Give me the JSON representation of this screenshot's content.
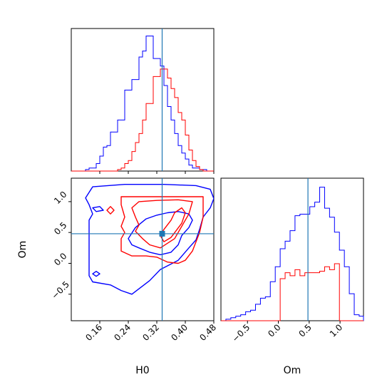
{
  "colors": {
    "blue": "#0000ff",
    "red": "#ff0000",
    "truth": "#1f77b4",
    "axis": "#000000"
  },
  "chart_data": [
    {
      "type": "histogram",
      "panel": "H0 marginal",
      "xlim": [
        0.08,
        0.48
      ],
      "truth": 0.335,
      "bin_edges": [
        0.08,
        0.09,
        0.1,
        0.11,
        0.12,
        0.13,
        0.14,
        0.15,
        0.16,
        0.17,
        0.18,
        0.19,
        0.2,
        0.21,
        0.22,
        0.23,
        0.24,
        0.25,
        0.26,
        0.27,
        0.28,
        0.29,
        0.3,
        0.31,
        0.32,
        0.33,
        0.34,
        0.35,
        0.36,
        0.37,
        0.38,
        0.39,
        0.4,
        0.41,
        0.42,
        0.43,
        0.44,
        0.45,
        0.46,
        0.47,
        0.48
      ],
      "series": [
        {
          "color": "blue",
          "values": [
            0,
            0,
            0,
            0,
            0.01,
            0.02,
            0.02,
            0.05,
            0.1,
            0.16,
            0.17,
            0.26,
            0.26,
            0.34,
            0.34,
            0.54,
            0.54,
            0.61,
            0.61,
            0.76,
            0.8,
            0.9,
            0.9,
            0.75,
            0.75,
            0.7,
            0.57,
            0.43,
            0.34,
            0.25,
            0.17,
            0.12,
            0.08,
            0.04,
            0.02,
            0.02,
            0.01,
            0.01,
            0,
            0
          ]
        },
        {
          "color": "red",
          "values": [
            0,
            0,
            0,
            0,
            0,
            0,
            0,
            0,
            0,
            0,
            0,
            0,
            0,
            0.01,
            0.02,
            0.05,
            0.07,
            0.13,
            0.19,
            0.25,
            0.34,
            0.45,
            0.45,
            0.63,
            0.63,
            0.68,
            0.68,
            0.62,
            0.55,
            0.49,
            0.39,
            0.34,
            0.24,
            0.14,
            0.07,
            0.03,
            0.01,
            0,
            0,
            0
          ]
        }
      ]
    },
    {
      "type": "contour",
      "panel": "H0 vs Om",
      "xlabel": "H0",
      "ylabel": "Om",
      "xlim": [
        0.08,
        0.48
      ],
      "ylim": [
        -0.93,
        1.38
      ],
      "xticks": [
        "0.16",
        "0.24",
        "0.32",
        "0.40",
        "0.48"
      ],
      "yticks": [
        "1.0",
        "0.5",
        "0.0",
        "−0.5"
      ],
      "xtick_values": [
        0.16,
        0.24,
        0.32,
        0.4,
        0.48
      ],
      "ytick_values": [
        1.0,
        0.5,
        0.0,
        -0.5
      ],
      "truth": [
        0.335,
        0.48
      ],
      "contours": [
        {
          "color": "blue",
          "points": [
            [
              0.12,
              1.06
            ],
            [
              0.14,
              1.24
            ],
            [
              0.23,
              1.28
            ],
            [
              0.34,
              1.28
            ],
            [
              0.43,
              1.26
            ],
            [
              0.47,
              1.2
            ],
            [
              0.48,
              1.05
            ],
            [
              0.47,
              0.9
            ],
            [
              0.45,
              0.75
            ],
            [
              0.44,
              0.55
            ],
            [
              0.43,
              0.38
            ],
            [
              0.41,
              0.25
            ],
            [
              0.38,
              0.05
            ],
            [
              0.33,
              -0.1
            ],
            [
              0.3,
              -0.28
            ],
            [
              0.25,
              -0.5
            ],
            [
              0.22,
              -0.44
            ],
            [
              0.19,
              -0.35
            ],
            [
              0.14,
              -0.3
            ],
            [
              0.13,
              -0.2
            ],
            [
              0.13,
              0.0
            ],
            [
              0.13,
              0.35
            ],
            [
              0.13,
              0.55
            ],
            [
              0.13,
              0.7
            ],
            [
              0.14,
              0.8
            ],
            [
              0.13,
              0.95
            ],
            [
              0.12,
              1.06
            ]
          ]
        },
        {
          "color": "blue",
          "points": [
            [
              0.24,
              0.4
            ],
            [
              0.26,
              0.58
            ],
            [
              0.29,
              0.72
            ],
            [
              0.32,
              0.78
            ],
            [
              0.35,
              0.82
            ],
            [
              0.38,
              0.84
            ],
            [
              0.41,
              0.8
            ],
            [
              0.42,
              0.7
            ],
            [
              0.41,
              0.58
            ],
            [
              0.39,
              0.45
            ],
            [
              0.38,
              0.3
            ],
            [
              0.36,
              0.18
            ],
            [
              0.33,
              0.14
            ],
            [
              0.3,
              0.18
            ],
            [
              0.27,
              0.25
            ],
            [
              0.25,
              0.3
            ],
            [
              0.24,
              0.4
            ]
          ]
        },
        {
          "color": "blue",
          "points": [
            [
              0.14,
              0.9
            ],
            [
              0.16,
              0.92
            ],
            [
              0.17,
              0.86
            ],
            [
              0.15,
              0.84
            ],
            [
              0.14,
              0.9
            ]
          ]
        },
        {
          "color": "blue",
          "points": [
            [
              0.14,
              -0.17
            ],
            [
              0.15,
              -0.13
            ],
            [
              0.16,
              -0.17
            ],
            [
              0.15,
              -0.21
            ],
            [
              0.14,
              -0.17
            ]
          ]
        },
        {
          "color": "red",
          "points": [
            [
              0.22,
              1.08
            ],
            [
              0.22,
              0.95
            ],
            [
              0.23,
              0.75
            ],
            [
              0.22,
              0.6
            ],
            [
              0.23,
              0.5
            ],
            [
              0.22,
              0.4
            ],
            [
              0.22,
              0.2
            ],
            [
              0.25,
              0.12
            ],
            [
              0.29,
              0.12
            ],
            [
              0.32,
              0.1
            ],
            [
              0.35,
              0.02
            ],
            [
              0.38,
              0.0
            ],
            [
              0.4,
              0.05
            ],
            [
              0.42,
              0.2
            ],
            [
              0.44,
              0.5
            ],
            [
              0.45,
              0.75
            ],
            [
              0.45,
              0.95
            ],
            [
              0.45,
              1.08
            ],
            [
              0.4,
              1.08
            ],
            [
              0.34,
              1.08
            ],
            [
              0.28,
              1.08
            ],
            [
              0.22,
              1.08
            ]
          ]
        },
        {
          "color": "red",
          "points": [
            [
              0.25,
              0.9
            ],
            [
              0.27,
              1.0
            ],
            [
              0.32,
              1.02
            ],
            [
              0.38,
              1.03
            ],
            [
              0.42,
              1.0
            ],
            [
              0.41,
              0.8
            ],
            [
              0.39,
              0.6
            ],
            [
              0.37,
              0.4
            ],
            [
              0.33,
              0.25
            ],
            [
              0.3,
              0.3
            ],
            [
              0.28,
              0.4
            ],
            [
              0.26,
              0.52
            ],
            [
              0.27,
              0.62
            ],
            [
              0.26,
              0.75
            ],
            [
              0.25,
              0.9
            ]
          ]
        },
        {
          "color": "red",
          "points": [
            [
              0.34,
              0.55
            ],
            [
              0.36,
              0.7
            ],
            [
              0.37,
              0.82
            ],
            [
              0.39,
              0.9
            ],
            [
              0.4,
              0.82
            ],
            [
              0.39,
              0.65
            ],
            [
              0.36,
              0.42
            ],
            [
              0.34,
              0.35
            ],
            [
              0.33,
              0.45
            ],
            [
              0.34,
              0.55
            ]
          ]
        },
        {
          "color": "red",
          "points": [
            [
              0.18,
              0.86
            ],
            [
              0.19,
              0.92
            ],
            [
              0.2,
              0.86
            ],
            [
              0.19,
              0.8
            ],
            [
              0.18,
              0.86
            ]
          ]
        }
      ]
    },
    {
      "type": "histogram",
      "panel": "Om marginal",
      "xlabel": "Om",
      "xlim": [
        -0.93,
        1.38
      ],
      "xticks": [
        "−0.5",
        "0.0",
        "0.5",
        "1.0"
      ],
      "xtick_values": [
        -0.5,
        0.0,
        0.5,
        1.0
      ],
      "truth": 0.48,
      "bin_edges": [
        -0.93,
        -0.85,
        -0.77,
        -0.69,
        -0.61,
        -0.53,
        -0.45,
        -0.37,
        -0.29,
        -0.21,
        -0.13,
        -0.05,
        0.03,
        0.11,
        0.19,
        0.27,
        0.35,
        0.43,
        0.51,
        0.59,
        0.67,
        0.75,
        0.83,
        0.91,
        0.99,
        1.07,
        1.15,
        1.23,
        1.31,
        1.38
      ],
      "series": [
        {
          "color": "blue",
          "values": [
            0,
            0.01,
            0.02,
            0.03,
            0.04,
            0.06,
            0.07,
            0.11,
            0.15,
            0.16,
            0.26,
            0.36,
            0.48,
            0.53,
            0.6,
            0.7,
            0.71,
            0.71,
            0.76,
            0.79,
            0.89,
            0.75,
            0.69,
            0.59,
            0.47,
            0.36,
            0.18,
            0.04,
            0.03
          ]
        },
        {
          "color": "red",
          "values": [
            0,
            0,
            0,
            0,
            0,
            0,
            0,
            0,
            0,
            0,
            0,
            0,
            0.28,
            0.32,
            0.3,
            0.34,
            0.3,
            0.32,
            0.32,
            0.32,
            0.33,
            0.36,
            0.34,
            0.38,
            0,
            0,
            0,
            0,
            0
          ]
        }
      ]
    }
  ],
  "labels": {
    "xlabel_h0": "H0",
    "ylabel_om": "Om",
    "xlabel_om": "Om"
  }
}
